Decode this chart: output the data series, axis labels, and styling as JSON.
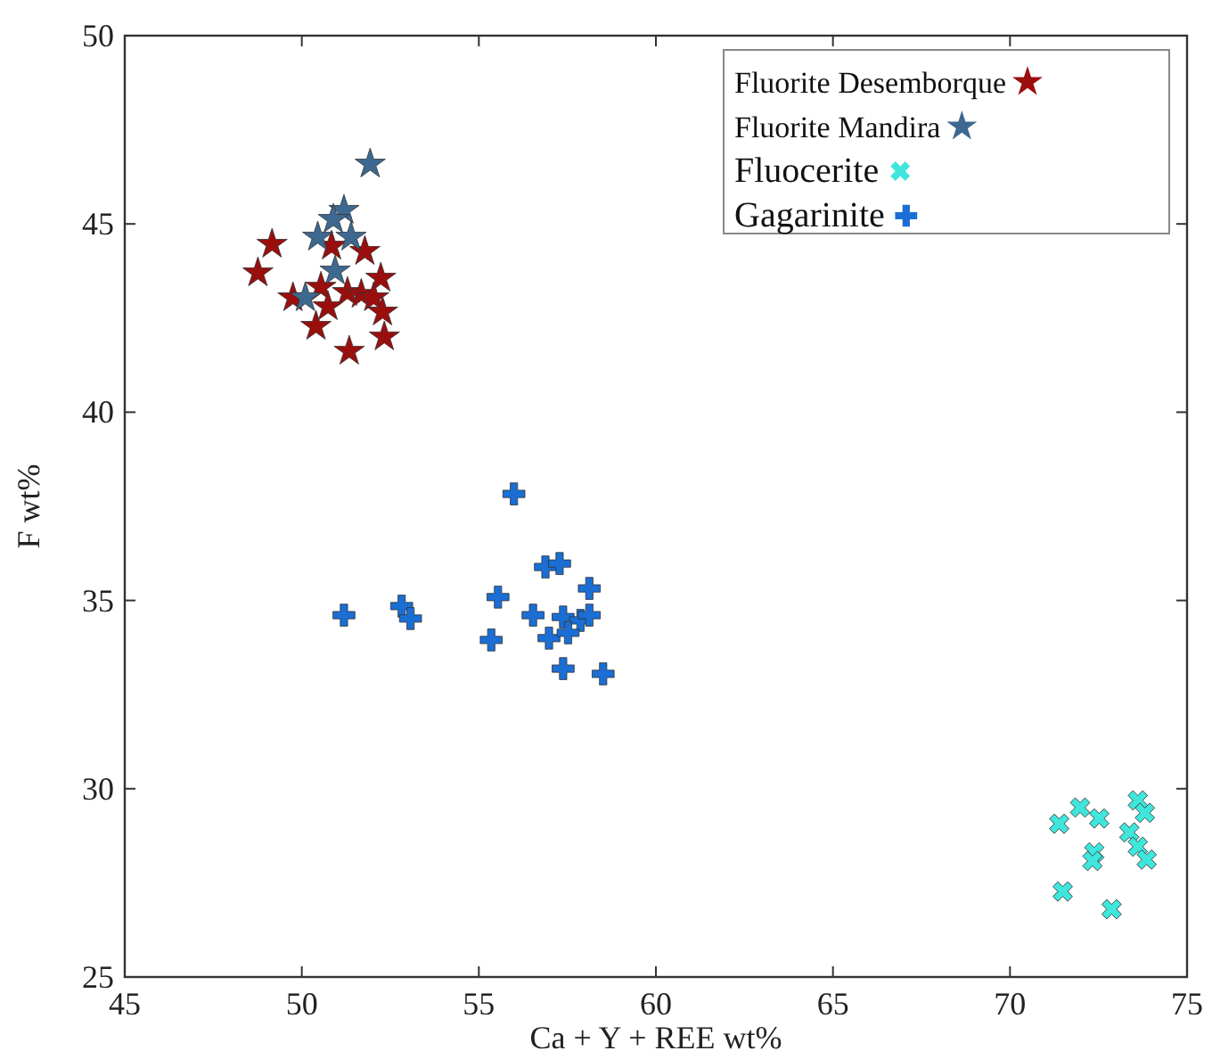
{
  "chart_data": {
    "type": "scatter",
    "xlabel": "Ca + Y + REE wt%",
    "ylabel": "F wt%",
    "xlim": [
      45,
      75
    ],
    "ylim": [
      25,
      50
    ],
    "xticks": [
      45,
      50,
      55,
      60,
      65,
      70,
      75
    ],
    "yticks": [
      25,
      30,
      35,
      40,
      45,
      50
    ],
    "grid": false,
    "legend": "top right",
    "series": [
      {
        "name": "Fluorite Desemborque",
        "color": "#9b0e0e",
        "marker": "star",
        "x": [
          49.16,
          48.76,
          49.75,
          50.54,
          50.84,
          51.78,
          52.23,
          51.29,
          51.68,
          52.03,
          52.28,
          50.4,
          50.74,
          51.34,
          52.33
        ],
        "values": [
          44.46,
          43.7,
          43.04,
          43.32,
          44.41,
          44.27,
          43.56,
          43.18,
          43.13,
          43.04,
          42.66,
          42.28,
          42.8,
          41.62,
          42.0
        ]
      },
      {
        "name": "Fluorite Mandira",
        "color": "#3d6890",
        "marker": "star",
        "x": [
          51.93,
          51.19,
          50.89,
          50.45,
          51.39,
          50.94,
          50.1
        ],
        "values": [
          46.59,
          45.36,
          45.12,
          44.65,
          44.65,
          43.75,
          43.04
        ]
      },
      {
        "name": "Fluocerite",
        "color": "#3ee6dc",
        "marker": "x",
        "x": [
          71.39,
          71.98,
          72.52,
          73.61,
          73.81,
          73.37,
          72.38,
          72.33,
          73.61,
          73.86,
          71.49,
          72.87
        ],
        "values": [
          29.07,
          29.5,
          29.21,
          29.69,
          29.36,
          28.84,
          28.31,
          28.08,
          28.46,
          28.12,
          27.27,
          26.8
        ]
      },
      {
        "name": "Gagarinite",
        "color": "#1a6ed4",
        "marker": "cross",
        "x": [
          55.99,
          56.88,
          57.28,
          55.54,
          58.12,
          52.82,
          53.07,
          51.19,
          56.53,
          57.38,
          57.87,
          58.12,
          56.98,
          57.52,
          55.35,
          57.38,
          58.51
        ],
        "values": [
          37.83,
          35.89,
          35.98,
          35.09,
          35.32,
          34.85,
          34.52,
          34.61,
          34.61,
          34.56,
          34.47,
          34.61,
          34.0,
          34.14,
          33.95,
          33.19,
          33.05
        ]
      }
    ]
  }
}
